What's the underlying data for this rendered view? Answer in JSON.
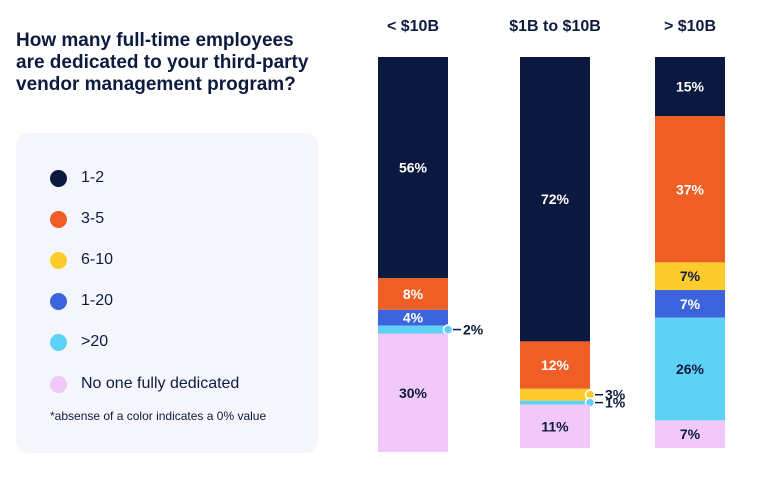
{
  "question": {
    "line1": "How many full-time employees",
    "line2": "are dedicated to your third-party",
    "line3": "vendor management program?"
  },
  "legend": {
    "items": [
      {
        "label": "1-2",
        "color": "#0b1840"
      },
      {
        "label": "3-5",
        "color": "#ee5e25"
      },
      {
        "label": "6-10",
        "color": "#fdcb2b"
      },
      {
        "label": "1-20",
        "color": "#3d63dc"
      },
      {
        "label": ">20",
        "color": "#5ed1f6"
      },
      {
        "label": "No one fully dedicated",
        "color": "#f2c8fb"
      }
    ],
    "note": "*absense of a color indicates a 0% value"
  },
  "chart_data": {
    "type": "bar",
    "stacked": true,
    "orientation": "vertical",
    "title": "How many full-time employees are dedicated to your third-party vendor management program?",
    "categories": [
      "< $10B",
      "$1B to $10B",
      "> $10B"
    ],
    "series": [
      {
        "name": "1-2",
        "color": "#0b1840",
        "values": [
          56,
          72,
          15
        ],
        "labels": [
          "56%",
          "72%",
          "15%"
        ]
      },
      {
        "name": "3-5",
        "color": "#ee5e25",
        "values": [
          8,
          12,
          37
        ],
        "labels": [
          "8%",
          "12%",
          "37%"
        ]
      },
      {
        "name": "6-10",
        "color": "#fdcb2b",
        "values": [
          0,
          3,
          7
        ],
        "labels": [
          "",
          "3%",
          "7%"
        ]
      },
      {
        "name": "1-20",
        "color": "#3d63dc",
        "values": [
          4,
          0,
          7
        ],
        "labels": [
          "4%",
          "",
          "7%"
        ]
      },
      {
        "name": ">20",
        "color": "#5ed1f6",
        "values": [
          2,
          1,
          26
        ],
        "labels": [
          "2%",
          "1%",
          "26%"
        ]
      },
      {
        "name": "No one fully dedicated",
        "color": "#f2c8fb",
        "values": [
          30,
          11,
          7
        ],
        "labels": [
          "30%",
          "11%",
          "7%"
        ]
      }
    ],
    "ylim": [
      0,
      100
    ],
    "xlabel": "",
    "ylabel": "",
    "note": "*absense of a color indicates a 0% value"
  }
}
